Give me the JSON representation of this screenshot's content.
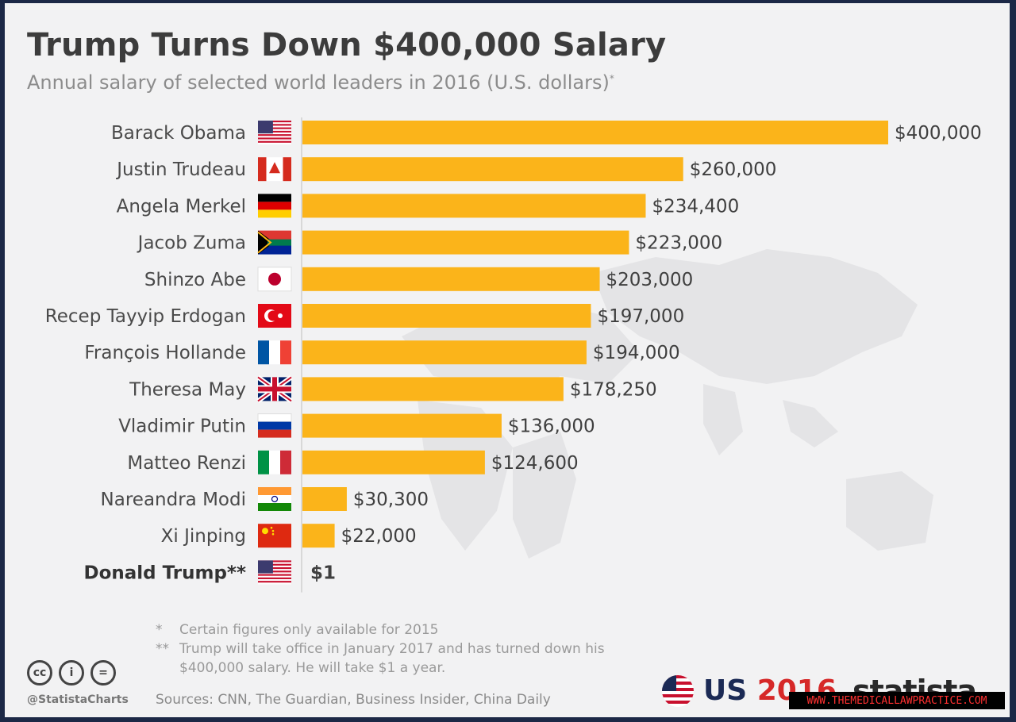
{
  "header": {
    "title": "Trump Turns Down $400,000 Salary",
    "subtitle": "Annual salary of selected world leaders in 2016 (U.S. dollars)",
    "subtitle_mark": "*"
  },
  "chart_data": {
    "type": "bar",
    "orientation": "horizontal",
    "title": "Trump Turns Down $400,000 Salary",
    "subtitle": "Annual salary of selected world leaders in 2016 (U.S. dollars)*",
    "xlim": [
      0,
      400000
    ],
    "grid": false,
    "bar_color": "#fbb41a",
    "categories": [
      "Barack Obama",
      "Justin Trudeau",
      "Angela Merkel",
      "Jacob Zuma",
      "Shinzo Abe",
      "Recep Tayyip Erdogan",
      "François Hollande",
      "Theresa May",
      "Vladimir Putin",
      "Matteo Renzi",
      "Nareandra Modi",
      "Xi Jinping",
      "Donald Trump**"
    ],
    "values": [
      400000,
      260000,
      234400,
      223000,
      203000,
      197000,
      194000,
      178250,
      136000,
      124600,
      30300,
      22000,
      1
    ],
    "value_labels": [
      "$400,000",
      "$260,000",
      "$234,400",
      "$223,000",
      "$203,000",
      "$197,000",
      "$194,000",
      "$178,250",
      "$136,000",
      "$124,600",
      "$30,300",
      "$22,000",
      "$1"
    ],
    "flags": [
      "us-flag",
      "ca-flag",
      "de-flag",
      "za-flag",
      "jp-flag",
      "tr-flag",
      "fr-flag",
      "uk-flag",
      "ru-flag",
      "it-flag",
      "in-flag",
      "cn-flag",
      "us-flag"
    ],
    "highlight": "Donald Trump**"
  },
  "footnotes": [
    {
      "mark": "*",
      "text": "Certain figures only available for 2015"
    },
    {
      "mark": "**",
      "text": "Trump will take office in January 2017 and has turned down his $400,000 salary. He will take $1 a year."
    }
  ],
  "sources": "Sources: CNN, The Guardian, Business Insider, China Daily",
  "footer": {
    "cc_icons": [
      "cc",
      "i",
      "="
    ],
    "handle": "@StatistaCharts",
    "brand_us": "US ",
    "brand_year": "2016",
    "statista": "statista",
    "watermark": "WWW.THEMEDICALLAWPRACTICE.COM"
  }
}
